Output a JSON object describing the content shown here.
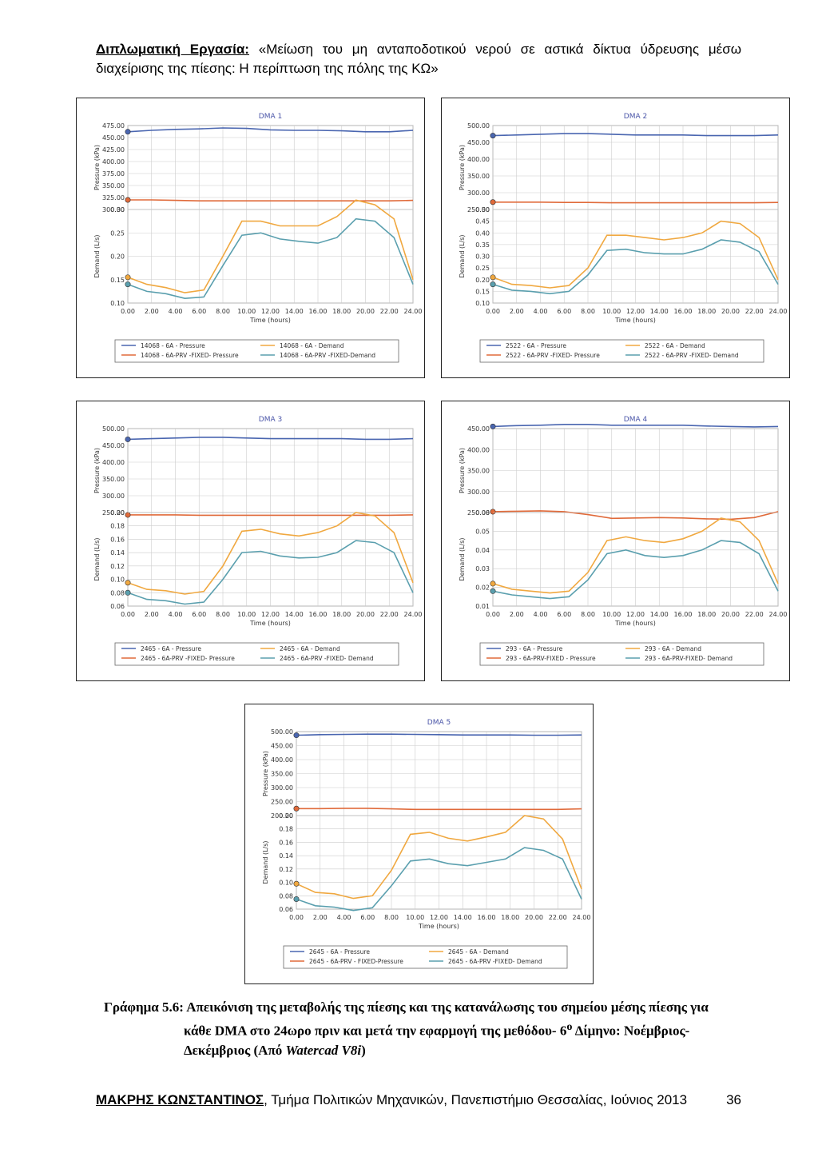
{
  "header": {
    "label": "Διπλωματική Εργασία:",
    "text": "«Μείωση του μη ανταποδοτικού νερού σε αστικά δίκτυα ύδρευσης μέσω διαχείρισης της πίεσης: Η περίπτωση της πόλης της ΚΩ»"
  },
  "caption": {
    "prefix": "Γράφημα 5.6: Απεικόνιση της μεταβολής της πίεσης και της κατανάλωσης του σημείου μέσης πίεσης για",
    "line2": "κάθε DMA στο 24ωρο πριν και μετά την εφαρμογή της μεθόδου- 6",
    "sup": "ο",
    "line2b": " Δίμηνο: Νοέμβριος-",
    "line3": "Δεκέμβριος (Από ",
    "software": "Watercad V8i",
    "line3b": ")"
  },
  "footer": {
    "author": "ΜΑΚΡΗΣ ΚΩΝΣΤΑΝΤΙΝΟΣ",
    "affiliation": ", Τμήμα Πολιτικών Μηχανικών, Πανεπιστήμιο Θεσσαλίας, Ιούνιος 2013",
    "page": "36"
  },
  "colors": {
    "pressure_before": "#4a66b0",
    "pressure_after": "#e06a3a",
    "demand_before": "#f0a840",
    "demand_after": "#5a9fae"
  },
  "chart_data": [
    {
      "type": "line",
      "title": "DMA 1",
      "xlabel": "Time (hours)",
      "xticks": [
        "0.00",
        "2.00",
        "4.00",
        "6.00",
        "8.00",
        "10.00",
        "12.00",
        "14.00",
        "16.00",
        "18.00",
        "20.00",
        "22.00",
        "24.00"
      ],
      "pressure": {
        "ylabel": "Pressure (kPa)",
        "ylim": [
          300,
          475
        ],
        "yticks": [
          "475.00",
          "450.00",
          "425.00",
          "400.00",
          "375.00",
          "350.00",
          "325.00",
          "300.00"
        ],
        "before": [
          462,
          465,
          467,
          468,
          470,
          469,
          466,
          465,
          465,
          464,
          462,
          462,
          465
        ],
        "after": [
          320,
          320,
          319,
          318,
          318,
          318,
          318,
          318,
          318,
          318,
          318,
          318,
          319
        ]
      },
      "demand": {
        "ylabel": "Demand (L/s)",
        "ylim": [
          0.1,
          0.3
        ],
        "yticks": [
          "0.30",
          "0.25",
          "0.20",
          "0.15",
          "0.10"
        ],
        "before": [
          0.155,
          0.14,
          0.133,
          0.122,
          0.128,
          0.2,
          0.275,
          0.275,
          0.265,
          0.265,
          0.265,
          0.285,
          0.32,
          0.31,
          0.28,
          0.15
        ],
        "after": [
          0.14,
          0.125,
          0.12,
          0.11,
          0.113,
          0.18,
          0.245,
          0.25,
          0.237,
          0.232,
          0.228,
          0.24,
          0.28,
          0.275,
          0.24,
          0.14
        ]
      },
      "legend": [
        "14068 - 6A - Pressure",
        "14068 - 6A - Demand",
        "14068 - 6A-PRV -FIXED- Pressure",
        "14068 - 6A-PRV -FIXED-Demand"
      ]
    },
    {
      "type": "line",
      "title": "DMA 2",
      "xlabel": "Time (hours)",
      "xticks": [
        "0.00",
        "2.00",
        "4.00",
        "6.00",
        "8.00",
        "10.00",
        "12.00",
        "14.00",
        "16.00",
        "18.00",
        "20.00",
        "22.00",
        "24.00"
      ],
      "pressure": {
        "ylabel": "Pressure (kPa)",
        "ylim": [
          250,
          500
        ],
        "yticks": [
          "500.00",
          "450.00",
          "400.00",
          "350.00",
          "300.00",
          "250.00"
        ],
        "before": [
          470,
          472,
          474,
          476,
          476,
          474,
          472,
          472,
          472,
          470,
          470,
          470,
          472
        ],
        "after": [
          272,
          272,
          272,
          271,
          271,
          270,
          270,
          270,
          270,
          270,
          270,
          270,
          271
        ]
      },
      "demand": {
        "ylabel": "Demand (L/s)",
        "ylim": [
          0.1,
          0.5
        ],
        "yticks": [
          "0.50",
          "0.45",
          "0.40",
          "0.35",
          "0.30",
          "0.25",
          "0.20",
          "0.15",
          "0.10"
        ],
        "before": [
          0.21,
          0.18,
          0.175,
          0.165,
          0.175,
          0.25,
          0.39,
          0.39,
          0.38,
          0.37,
          0.38,
          0.4,
          0.45,
          0.44,
          0.38,
          0.2
        ],
        "after": [
          0.18,
          0.155,
          0.15,
          0.14,
          0.15,
          0.22,
          0.325,
          0.33,
          0.315,
          0.31,
          0.31,
          0.33,
          0.37,
          0.36,
          0.32,
          0.18
        ]
      },
      "legend": [
        "2522 - 6A - Pressure",
        "2522 - 6A - Demand",
        "2522 - 6A-PRV -FIXED- Pressure",
        "2522 - 6A-PRV -FIXED- Demand"
      ]
    },
    {
      "type": "line",
      "title": "DMA 3",
      "xlabel": "Time (hours)",
      "xticks": [
        "0.00",
        "2.00",
        "4.00",
        "6.00",
        "8.00",
        "10.00",
        "12.00",
        "14.00",
        "16.00",
        "18.00",
        "20.00",
        "22.00",
        "24.00"
      ],
      "pressure": {
        "ylabel": "Pressure (kPa)",
        "ylim": [
          250,
          500
        ],
        "yticks": [
          "500.00",
          "450.00",
          "400.00",
          "350.00",
          "300.00",
          "250.00"
        ],
        "before": [
          468,
          470,
          472,
          474,
          474,
          472,
          470,
          470,
          470,
          470,
          468,
          468,
          470
        ],
        "after": [
          243,
          243,
          243,
          242,
          242,
          242,
          242,
          242,
          242,
          242,
          242,
          242,
          243
        ]
      },
      "demand": {
        "ylabel": "Demand (L/s)",
        "ylim": [
          0.06,
          0.2
        ],
        "yticks": [
          "0.20",
          "0.18",
          "0.16",
          "0.14",
          "0.12",
          "0.10",
          "0.08",
          "0.06"
        ],
        "before": [
          0.095,
          0.085,
          0.083,
          0.078,
          0.082,
          0.12,
          0.172,
          0.175,
          0.168,
          0.165,
          0.17,
          0.18,
          0.2,
          0.195,
          0.17,
          0.095
        ],
        "after": [
          0.08,
          0.07,
          0.068,
          0.063,
          0.066,
          0.1,
          0.14,
          0.142,
          0.135,
          0.132,
          0.133,
          0.14,
          0.158,
          0.155,
          0.14,
          0.08
        ]
      },
      "legend": [
        "2465 - 6A - Pressure",
        "2465 - 6A - Demand",
        "2465 - 6A-PRV -FIXED- Pressure",
        "2465 - 6A-PRV -FIXED- Demand"
      ]
    },
    {
      "type": "line",
      "title": "DMA 4",
      "xlabel": "Time (hours)",
      "xticks": [
        "0.00",
        "2.00",
        "4.00",
        "6.00",
        "8.00",
        "10.00",
        "12.00",
        "14.00",
        "16.00",
        "18.00",
        "20.00",
        "22.00",
        "24.00"
      ],
      "pressure": {
        "ylabel": "Pressure (kPa)",
        "ylim": [
          250,
          450
        ],
        "yticks": [
          "450.00",
          "400.00",
          "350.00",
          "300.00",
          "250.00"
        ],
        "before": [
          455,
          457,
          458,
          460,
          460,
          458,
          458,
          458,
          458,
          456,
          455,
          454,
          455
        ],
        "after": [
          252,
          253,
          254,
          252,
          245,
          236,
          237,
          238,
          237,
          235,
          234,
          238,
          252
        ]
      },
      "demand": {
        "ylabel": "Demand (L/s)",
        "ylim": [
          0.01,
          0.06
        ],
        "yticks": [
          "0.06",
          "0.05",
          "0.04",
          "0.03",
          "0.02",
          "0.01"
        ],
        "before": [
          0.022,
          0.019,
          0.018,
          0.017,
          0.018,
          0.028,
          0.045,
          0.047,
          0.045,
          0.044,
          0.046,
          0.05,
          0.057,
          0.055,
          0.045,
          0.022
        ],
        "after": [
          0.018,
          0.016,
          0.015,
          0.014,
          0.015,
          0.024,
          0.038,
          0.04,
          0.037,
          0.036,
          0.037,
          0.04,
          0.045,
          0.044,
          0.038,
          0.018
        ]
      },
      "legend": [
        "293 - 6A - Pressure",
        "293 - 6A - Demand",
        "293 - 6A-PRV-FIXED - Pressure",
        "293 - 6A-PRV-FIXED- Demand"
      ]
    },
    {
      "type": "line",
      "title": "DMA 5",
      "xlabel": "Time (hours)",
      "xticks": [
        "0.00",
        "2.00",
        "4.00",
        "6.00",
        "8.00",
        "10.00",
        "12.00",
        "14.00",
        "16.00",
        "18.00",
        "20.00",
        "22.00",
        "24.00"
      ],
      "pressure": {
        "ylabel": "Pressure (kPa)",
        "ylim": [
          200,
          500
        ],
        "yticks": [
          "500.00",
          "450.00",
          "400.00",
          "350.00",
          "300.00",
          "250.00",
          "200.00"
        ],
        "before": [
          487,
          489,
          490,
          491,
          491,
          490,
          489,
          488,
          488,
          488,
          487,
          487,
          488
        ],
        "after": [
          225,
          225,
          226,
          226,
          224,
          222,
          222,
          222,
          222,
          222,
          222,
          222,
          224
        ]
      },
      "demand": {
        "ylabel": "Demand (L/s)",
        "ylim": [
          0.06,
          0.2
        ],
        "yticks": [
          "0.20",
          "0.18",
          "0.16",
          "0.14",
          "0.12",
          "0.10",
          "0.08",
          "0.06"
        ],
        "before": [
          0.098,
          0.085,
          0.083,
          0.076,
          0.08,
          0.118,
          0.172,
          0.175,
          0.166,
          0.162,
          0.168,
          0.175,
          0.2,
          0.195,
          0.165,
          0.09
        ],
        "after": [
          0.075,
          0.065,
          0.063,
          0.058,
          0.062,
          0.095,
          0.132,
          0.135,
          0.128,
          0.125,
          0.13,
          0.135,
          0.152,
          0.148,
          0.135,
          0.075
        ]
      },
      "legend": [
        "2645 - 6A - Pressure",
        "2645 - 6A - Demand",
        "2645 - 6A-PRV - FIXED-Pressure",
        "2645 - 6A-PRV -FIXED- Demand"
      ]
    }
  ]
}
